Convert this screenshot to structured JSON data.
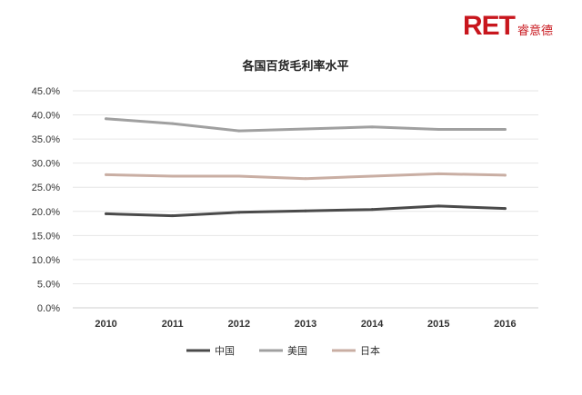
{
  "logo": {
    "mark": "RET",
    "name": "睿意德"
  },
  "chart_data": {
    "type": "line",
    "title": "各国百货毛利率水平",
    "x": [
      "2010",
      "2011",
      "2012",
      "2013",
      "2014",
      "2015",
      "2016"
    ],
    "ylim": [
      0,
      45
    ],
    "yticks": [
      0,
      5,
      10,
      15,
      20,
      25,
      30,
      35,
      40,
      45
    ],
    "ytick_labels": [
      "0.0%",
      "5.0%",
      "10.0%",
      "15.0%",
      "20.0%",
      "25.0%",
      "30.0%",
      "35.0%",
      "40.0%",
      "45.0%"
    ],
    "grid": true,
    "legend": "bottom",
    "series": [
      {
        "name": "中国",
        "color": "#4a4a4a",
        "values": [
          19.5,
          19.1,
          19.8,
          20.1,
          20.4,
          21.1,
          20.6
        ]
      },
      {
        "name": "美国",
        "color": "#a0a0a0",
        "values": [
          39.2,
          38.2,
          36.7,
          37.1,
          37.5,
          37.0,
          37.0
        ]
      },
      {
        "name": "日本",
        "color": "#c9aea3",
        "values": [
          27.6,
          27.3,
          27.3,
          26.8,
          27.3,
          27.8,
          27.5
        ]
      }
    ]
  }
}
